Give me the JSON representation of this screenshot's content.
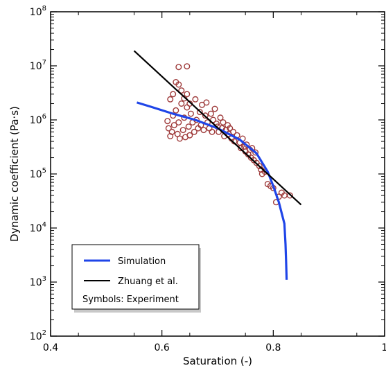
{
  "chart_data": {
    "type": "line",
    "xlabel": "Saturation (-)",
    "ylabel": "Dynamic coefficient (Pa·s)",
    "xlim": [
      0.4,
      1.0
    ],
    "ylim": [
      100,
      100000000
    ],
    "y_scale": "log",
    "grid": false,
    "x_ticks": [
      0.4,
      0.6,
      0.8,
      1.0
    ],
    "x_tick_labels": [
      "0.4",
      "0.6",
      "0.8",
      "1"
    ],
    "y_ticks": [
      100,
      1000,
      10000,
      100000,
      1000000,
      10000000,
      100000000
    ],
    "y_tick_labels": [
      {
        "base": "10",
        "exp": "2"
      },
      {
        "base": "10",
        "exp": "3"
      },
      {
        "base": "10",
        "exp": "4"
      },
      {
        "base": "10",
        "exp": "5"
      },
      {
        "base": "10",
        "exp": "6"
      },
      {
        "base": "10",
        "exp": "7"
      },
      {
        "base": "10",
        "exp": "8"
      }
    ],
    "legend": {
      "placement": "lower-left",
      "entries": [
        {
          "label": "Simulation",
          "color": "#1f45e8",
          "marker": "line"
        },
        {
          "label": "Zhuang et al.",
          "color": "#000000",
          "marker": "line"
        },
        {
          "label": "Symbols: Experiment",
          "color": "",
          "marker": "none"
        }
      ]
    },
    "series": [
      {
        "name": "Simulation",
        "kind": "line",
        "color": "#1f45e8",
        "points": [
          [
            0.555,
            2100000
          ],
          [
            0.58,
            1750000
          ],
          [
            0.62,
            1300000
          ],
          [
            0.66,
            1000000
          ],
          [
            0.7,
            700000
          ],
          [
            0.74,
            430000
          ],
          [
            0.77,
            240000
          ],
          [
            0.79,
            110000
          ],
          [
            0.8,
            60000
          ],
          [
            0.81,
            30000
          ],
          [
            0.82,
            12000
          ],
          [
            0.822,
            5000
          ],
          [
            0.823,
            2500
          ],
          [
            0.824,
            1100
          ]
        ]
      },
      {
        "name": "Zhuang et al.",
        "kind": "line",
        "color": "#000000",
        "points": [
          [
            0.55,
            19000000
          ],
          [
            0.85,
            27000
          ]
        ]
      },
      {
        "name": "Experiment",
        "kind": "scatter",
        "color": "#9e3a3a",
        "points": [
          [
            0.61,
            950000
          ],
          [
            0.612,
            700000
          ],
          [
            0.615,
            500000
          ],
          [
            0.618,
            600000
          ],
          [
            0.62,
            1200000
          ],
          [
            0.622,
            800000
          ],
          [
            0.625,
            1500000
          ],
          [
            0.628,
            550000
          ],
          [
            0.63,
            900000
          ],
          [
            0.632,
            450000
          ],
          [
            0.635,
            2000000
          ],
          [
            0.638,
            650000
          ],
          [
            0.64,
            1100000
          ],
          [
            0.642,
            480000
          ],
          [
            0.645,
            1700000
          ],
          [
            0.648,
            750000
          ],
          [
            0.65,
            520000
          ],
          [
            0.652,
            1300000
          ],
          [
            0.655,
            900000
          ],
          [
            0.658,
            600000
          ],
          [
            0.66,
            2400000
          ],
          [
            0.662,
            1000000
          ],
          [
            0.665,
            700000
          ],
          [
            0.668,
            1400000
          ],
          [
            0.67,
            800000
          ],
          [
            0.672,
            1900000
          ],
          [
            0.675,
            650000
          ],
          [
            0.678,
            1200000
          ],
          [
            0.68,
            2100000
          ],
          [
            0.682,
            900000
          ],
          [
            0.685,
            700000
          ],
          [
            0.688,
            1300000
          ],
          [
            0.69,
            600000
          ],
          [
            0.692,
            1000000
          ],
          [
            0.695,
            1600000
          ],
          [
            0.698,
            850000
          ],
          [
            0.7,
            750000
          ],
          [
            0.702,
            600000
          ],
          [
            0.705,
            1100000
          ],
          [
            0.708,
            700000
          ],
          [
            0.71,
            900000
          ],
          [
            0.712,
            500000
          ],
          [
            0.715,
            650000
          ],
          [
            0.718,
            800000
          ],
          [
            0.72,
            550000
          ],
          [
            0.722,
            700000
          ],
          [
            0.725,
            450000
          ],
          [
            0.728,
            600000
          ],
          [
            0.73,
            400000
          ],
          [
            0.735,
            520000
          ],
          [
            0.74,
            380000
          ],
          [
            0.742,
            300000
          ],
          [
            0.745,
            450000
          ],
          [
            0.748,
            320000
          ],
          [
            0.75,
            260000
          ],
          [
            0.752,
            350000
          ],
          [
            0.755,
            230000
          ],
          [
            0.758,
            280000
          ],
          [
            0.76,
            200000
          ],
          [
            0.762,
            300000
          ],
          [
            0.765,
            180000
          ],
          [
            0.768,
            250000
          ],
          [
            0.77,
            160000
          ],
          [
            0.775,
            140000
          ],
          [
            0.778,
            120000
          ],
          [
            0.78,
            100000
          ],
          [
            0.785,
            110000
          ],
          [
            0.79,
            65000
          ],
          [
            0.795,
            60000
          ],
          [
            0.8,
            55000
          ],
          [
            0.805,
            30000
          ],
          [
            0.81,
            38000
          ],
          [
            0.815,
            45000
          ],
          [
            0.82,
            40000
          ],
          [
            0.83,
            40000
          ],
          [
            0.615,
            2400000
          ],
          [
            0.62,
            3000000
          ],
          [
            0.625,
            5000000
          ],
          [
            0.63,
            4500000
          ],
          [
            0.635,
            3500000
          ],
          [
            0.64,
            2500000
          ],
          [
            0.645,
            3000000
          ],
          [
            0.65,
            2000000
          ],
          [
            0.63,
            9500000
          ],
          [
            0.645,
            9800000
          ]
        ]
      }
    ]
  }
}
